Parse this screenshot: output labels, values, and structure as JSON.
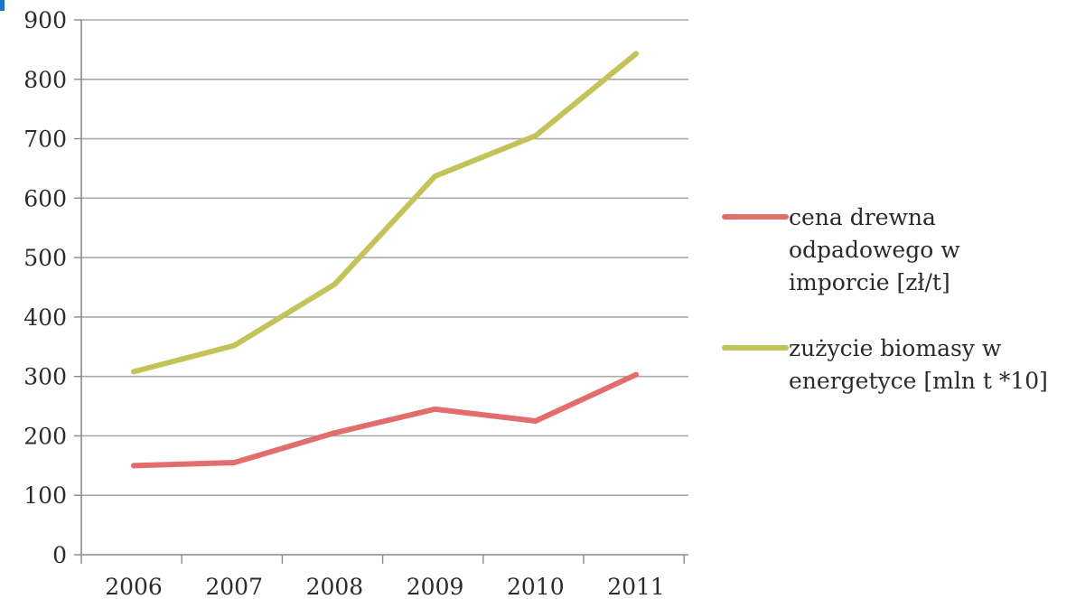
{
  "chart_data": {
    "type": "line",
    "title": "",
    "xlabel": "",
    "ylabel": "",
    "categories": [
      "2006",
      "2007",
      "2008",
      "2009",
      "2010",
      "2011"
    ],
    "ylim": [
      0,
      900
    ],
    "yticks": [
      0,
      100,
      200,
      300,
      400,
      500,
      600,
      700,
      800,
      900
    ],
    "grid": true,
    "legend_position": "right",
    "series": [
      {
        "name_lines": [
          "cena drewna",
          "odpadowego w",
          "imporcie [zł/t]"
        ],
        "color": "#e36c6c",
        "values": [
          150,
          155,
          205,
          245,
          225,
          303
        ]
      },
      {
        "name_lines": [
          "zużycie biomasy w",
          "energetyce [mln t *10]"
        ],
        "color": "#c2c45a",
        "values": [
          308,
          352,
          455,
          637,
          705,
          843
        ]
      }
    ]
  }
}
